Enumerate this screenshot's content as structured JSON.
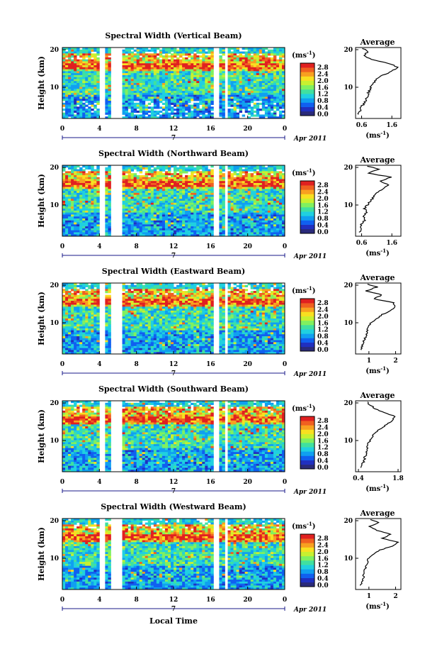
{
  "xlabel": "Local Time",
  "date_label": "Apr 2011",
  "day_label": "7",
  "ylabel": "Height (km)",
  "unit_label": "(ms",
  "unit_exp": "-1",
  "unit_close": ")",
  "avg_title": "Average",
  "colorbar": {
    "ticks": [
      "2.8",
      "2.4",
      "2.0",
      "1.6",
      "1.2",
      "0.8",
      "0.4",
      "0.0"
    ],
    "colors": [
      "#2a2a7a",
      "#2030c0",
      "#1060f0",
      "#10a0f0",
      "#20d0e0",
      "#40e0a0",
      "#80f060",
      "#c8f030",
      "#f8e020",
      "#f8a020",
      "#f06020",
      "#e02020"
    ]
  },
  "chart_data": [
    {
      "type": "heatmap",
      "title": "Spectral Width (Vertical Beam)",
      "x_ticks": [
        "0",
        "4",
        "8",
        "12",
        "16",
        "20",
        "0"
      ],
      "y_ticks": [
        "20",
        "10"
      ],
      "xlim": [
        0,
        24
      ],
      "ylim": [
        2,
        20
      ],
      "gaps_hours": [
        [
          4.0,
          4.5
        ],
        [
          5.3,
          6.6
        ],
        [
          16.2,
          16.9
        ],
        [
          17.6,
          17.8
        ]
      ],
      "average_profile": {
        "x_ticks": [
          "0.6",
          "1.6"
        ],
        "xlim": [
          0.4,
          1.9
        ],
        "height_km": [
          3,
          4,
          5,
          6,
          7,
          8,
          9,
          10,
          11,
          12,
          13,
          14,
          15,
          16,
          17,
          18,
          19,
          20
        ],
        "width_ms": [
          0.5,
          0.55,
          0.6,
          0.7,
          0.75,
          0.8,
          0.85,
          0.9,
          1.0,
          1.1,
          1.3,
          1.6,
          1.8,
          1.5,
          0.9,
          0.7,
          0.8,
          0.6
        ]
      }
    },
    {
      "type": "heatmap",
      "title": "Spectral Width (Northward Beam)",
      "x_ticks": [
        "0",
        "4",
        "8",
        "12",
        "16",
        "20",
        "0"
      ],
      "y_ticks": [
        "20",
        "10"
      ],
      "xlim": [
        0,
        24
      ],
      "ylim": [
        2,
        20
      ],
      "gaps_hours": [
        [
          4.0,
          4.5
        ],
        [
          5.3,
          6.6
        ],
        [
          16.2,
          16.9
        ],
        [
          17.6,
          17.8
        ]
      ],
      "average_profile": {
        "x_ticks": [
          "0.6",
          "1.6"
        ],
        "xlim": [
          0.4,
          1.9
        ],
        "height_km": [
          3,
          4,
          5,
          6,
          7,
          8,
          9,
          10,
          11,
          12,
          13,
          14,
          15,
          16,
          17,
          18,
          19,
          20
        ],
        "width_ms": [
          0.55,
          0.6,
          0.6,
          0.7,
          0.65,
          0.75,
          0.7,
          0.8,
          0.9,
          1.0,
          1.1,
          1.3,
          1.5,
          1.2,
          1.6,
          0.8,
          1.2,
          0.7
        ]
      }
    },
    {
      "type": "heatmap",
      "title": "Spectral Width (Eastward Beam)",
      "x_ticks": [
        "0",
        "4",
        "8",
        "12",
        "16",
        "20",
        "0"
      ],
      "y_ticks": [
        "20",
        "10"
      ],
      "xlim": [
        0,
        24
      ],
      "ylim": [
        2,
        20
      ],
      "gaps_hours": [
        [
          4.0,
          4.5
        ],
        [
          5.3,
          6.6
        ],
        [
          16.2,
          16.9
        ],
        [
          17.6,
          17.8
        ]
      ],
      "average_profile": {
        "x_ticks": [
          "1",
          "2"
        ],
        "xlim": [
          0.5,
          2.2
        ],
        "height_km": [
          3,
          4,
          5,
          6,
          7,
          8,
          9,
          10,
          11,
          12,
          13,
          14,
          15,
          16,
          17,
          18,
          19,
          20
        ],
        "width_ms": [
          0.7,
          0.75,
          0.8,
          0.85,
          0.9,
          0.95,
          1.0,
          1.1,
          1.3,
          1.5,
          1.8,
          2.0,
          1.9,
          1.2,
          1.5,
          0.9,
          1.3,
          0.8
        ]
      }
    },
    {
      "type": "heatmap",
      "title": "Spectral Width (Southward Beam)",
      "x_ticks": [
        "0",
        "4",
        "8",
        "12",
        "16",
        "20",
        "0"
      ],
      "y_ticks": [
        "20",
        "10"
      ],
      "xlim": [
        0,
        24
      ],
      "ylim": [
        2,
        20
      ],
      "gaps_hours": [
        [
          4.0,
          4.5
        ],
        [
          5.3,
          6.6
        ],
        [
          16.2,
          16.9
        ],
        [
          17.6,
          17.8
        ]
      ],
      "average_profile": {
        "x_ticks": [
          "0.4",
          "1.8"
        ],
        "xlim": [
          0.3,
          1.9
        ],
        "height_km": [
          3,
          4,
          5,
          6,
          7,
          8,
          9,
          10,
          11,
          12,
          13,
          14,
          15,
          16,
          17,
          18,
          19,
          20
        ],
        "width_ms": [
          0.5,
          0.55,
          0.6,
          0.65,
          0.7,
          0.7,
          0.75,
          0.8,
          0.9,
          1.0,
          1.2,
          1.4,
          1.6,
          1.7,
          1.3,
          1.0,
          0.8,
          0.7
        ]
      }
    },
    {
      "type": "heatmap",
      "title": "Spectral Width (Westward Beam)",
      "x_ticks": [
        "0",
        "4",
        "8",
        "12",
        "16",
        "20",
        "0"
      ],
      "y_ticks": [
        "20",
        "10"
      ],
      "xlim": [
        0,
        24
      ],
      "ylim": [
        2,
        20
      ],
      "gaps_hours": [
        [
          4.0,
          4.5
        ],
        [
          5.3,
          6.6
        ],
        [
          16.2,
          16.9
        ],
        [
          17.6,
          17.8
        ]
      ],
      "average_profile": {
        "x_ticks": [
          "1",
          "2"
        ],
        "xlim": [
          0.5,
          2.2
        ],
        "height_km": [
          3,
          4,
          5,
          6,
          7,
          8,
          9,
          10,
          11,
          12,
          13,
          14,
          15,
          16,
          17,
          18,
          19,
          20
        ],
        "width_ms": [
          0.7,
          0.75,
          0.8,
          0.8,
          0.85,
          0.9,
          0.95,
          1.0,
          1.2,
          1.4,
          1.9,
          2.1,
          1.5,
          1.8,
          1.3,
          1.0,
          1.4,
          0.9
        ]
      }
    }
  ]
}
